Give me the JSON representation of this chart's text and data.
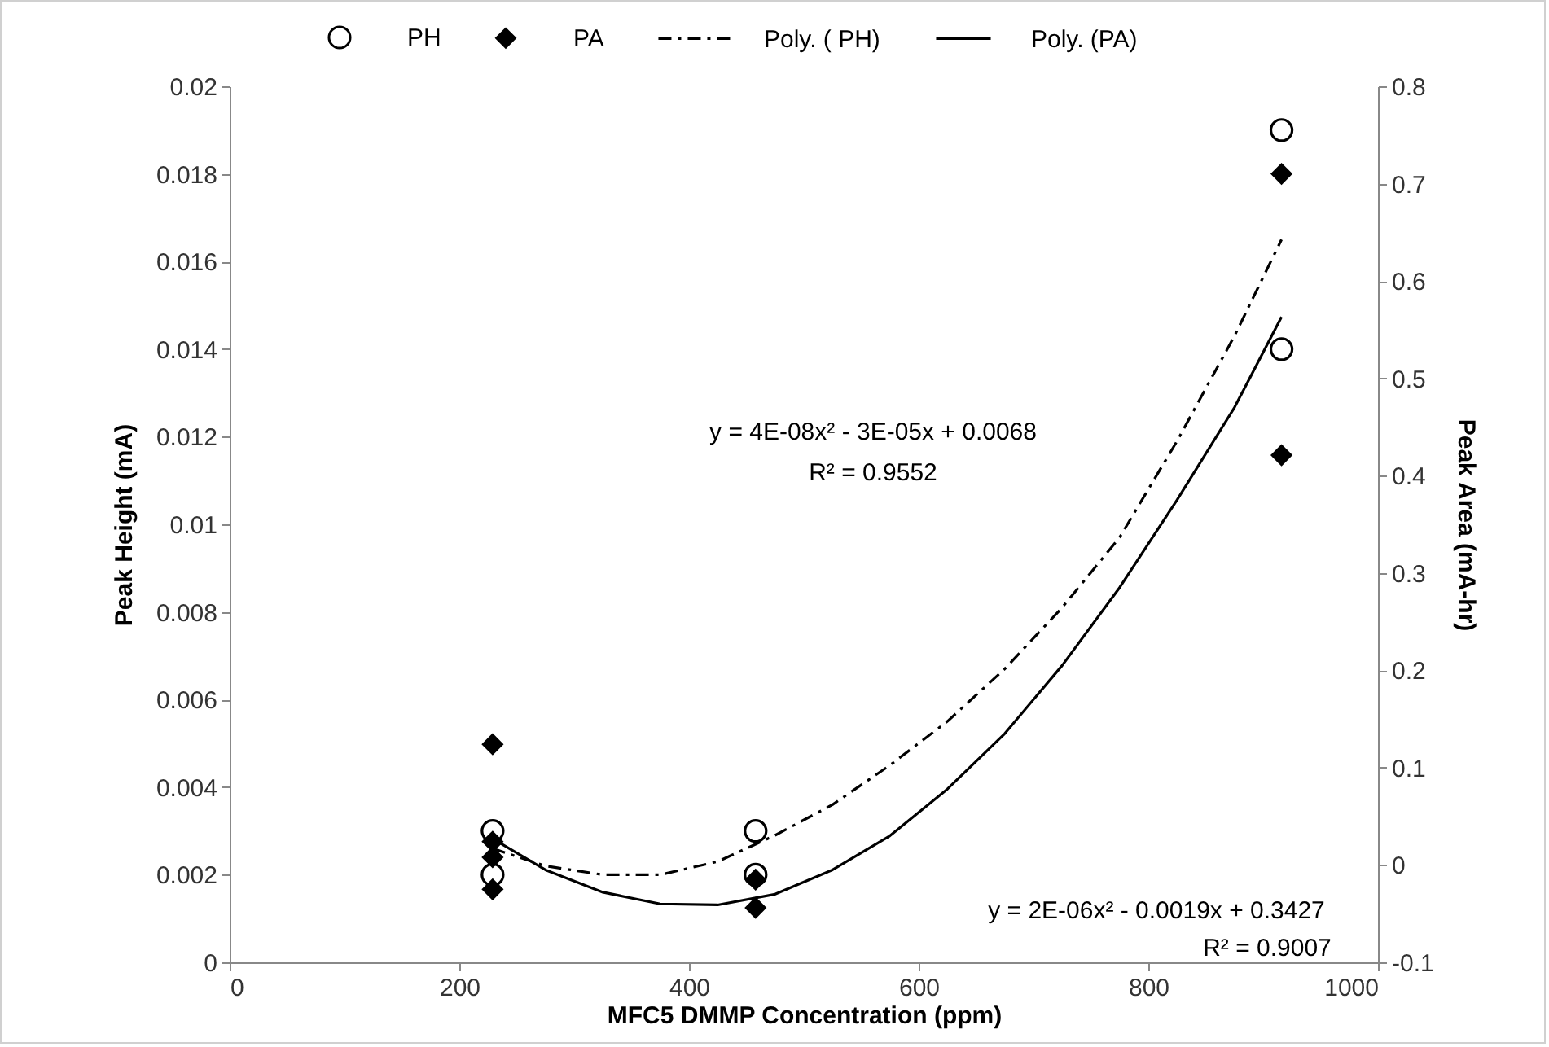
{
  "chart_data": {
    "type": "scatter",
    "xlabel": "MFC5 DMMP Concentration (ppm)",
    "ylabel": "Peak Height (mA)",
    "y2label": "Peak Area (mA-hr)",
    "xlim": [
      0,
      1000
    ],
    "xticks": [
      0,
      200,
      400,
      600,
      800,
      1000
    ],
    "ylim": [
      0,
      0.02
    ],
    "yticks": [
      0,
      0.002,
      0.004,
      0.006,
      0.008,
      0.01,
      0.012,
      0.014,
      0.016,
      0.018,
      0.02
    ],
    "y2lim": [
      -0.1,
      0.8
    ],
    "y2ticks": [
      -0.1,
      0,
      0.1,
      0.2,
      0.3,
      0.4,
      0.5,
      0.6,
      0.7,
      0.8
    ],
    "grid": false,
    "legend": "top",
    "annotations": [
      "y = 4E-08x² - 3E-05x + 0.0068",
      "R² = 0.9552",
      "y = 2E-06x² - 0.0019x + 0.3427",
      "R² = 0.9007"
    ],
    "series": [
      {
        "name": "PH",
        "marker": "circle",
        "color": "#000000",
        "x": [
          229,
          229,
          458,
          458,
          916,
          916
        ],
        "values": [
          0.003,
          0.002,
          0.003,
          0.002,
          0.019,
          0.014
        ]
      },
      {
        "name": "PA",
        "marker": "diamond",
        "axis": "y2",
        "color": "#000000",
        "x": [
          229,
          229,
          229,
          229,
          458,
          458,
          916,
          916
        ],
        "values": [
          0.124,
          0.024,
          0.008,
          -0.025,
          -0.015,
          -0.044,
          0.71,
          0.421
        ]
      },
      {
        "name": "Poly. ( PH)",
        "type": "line",
        "line_style": "dashdot",
        "color": "#000000",
        "x": [
          229,
          275,
          325,
          375,
          425,
          475,
          525,
          575,
          625,
          675,
          725,
          775,
          825,
          875,
          916
        ],
        "values": [
          0.0026,
          0.0022,
          0.002,
          0.002,
          0.0023,
          0.0029,
          0.0036,
          0.0045,
          0.0055,
          0.0067,
          0.0081,
          0.0097,
          0.0119,
          0.0143,
          0.0165
        ]
      },
      {
        "name": "Poly. (PA)",
        "type": "line",
        "line_style": "solid",
        "axis": "y2",
        "color": "#000000",
        "x": [
          229,
          275,
          325,
          375,
          425,
          475,
          525,
          575,
          625,
          675,
          725,
          775,
          825,
          875,
          916
        ],
        "values": [
          0.027,
          -0.005,
          -0.028,
          -0.04,
          -0.041,
          -0.03,
          -0.005,
          0.03,
          0.078,
          0.135,
          0.205,
          0.285,
          0.375,
          0.47,
          0.563
        ]
      }
    ]
  }
}
